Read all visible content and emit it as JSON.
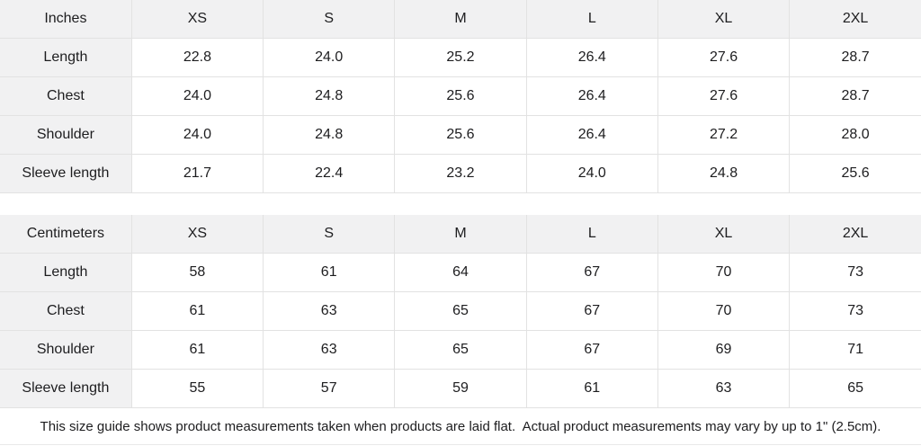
{
  "tables": [
    {
      "unit_label": "Inches",
      "sizes": [
        "XS",
        "S",
        "M",
        "L",
        "XL",
        "2XL"
      ],
      "rows": [
        {
          "label": "Length",
          "values": [
            "22.8",
            "24.0",
            "25.2",
            "26.4",
            "27.6",
            "28.7"
          ]
        },
        {
          "label": "Chest",
          "values": [
            "24.0",
            "24.8",
            "25.6",
            "26.4",
            "27.6",
            "28.7"
          ]
        },
        {
          "label": "Shoulder",
          "values": [
            "24.0",
            "24.8",
            "25.6",
            "26.4",
            "27.2",
            "28.0"
          ]
        },
        {
          "label": "Sleeve length",
          "values": [
            "21.7",
            "22.4",
            "23.2",
            "24.0",
            "24.8",
            "25.6"
          ]
        }
      ]
    },
    {
      "unit_label": "Centimeters",
      "sizes": [
        "XS",
        "S",
        "M",
        "L",
        "XL",
        "2XL"
      ],
      "rows": [
        {
          "label": "Length",
          "values": [
            "58",
            "61",
            "64",
            "67",
            "70",
            "73"
          ]
        },
        {
          "label": "Chest",
          "values": [
            "61",
            "63",
            "65",
            "67",
            "70",
            "73"
          ]
        },
        {
          "label": "Shoulder",
          "values": [
            "61",
            "63",
            "65",
            "67",
            "69",
            "71"
          ]
        },
        {
          "label": "Sleeve length",
          "values": [
            "55",
            "57",
            "59",
            "61",
            "63",
            "65"
          ]
        }
      ]
    }
  ],
  "footer": {
    "note": "This size guide shows product measurements taken when products are laid flat.  Actual product measurements may vary by up to 1\" (2.5cm)."
  },
  "colors": {
    "header_bg": "#f1f1f2",
    "border": "#e2e2e2",
    "text": "#1d1d1f"
  }
}
